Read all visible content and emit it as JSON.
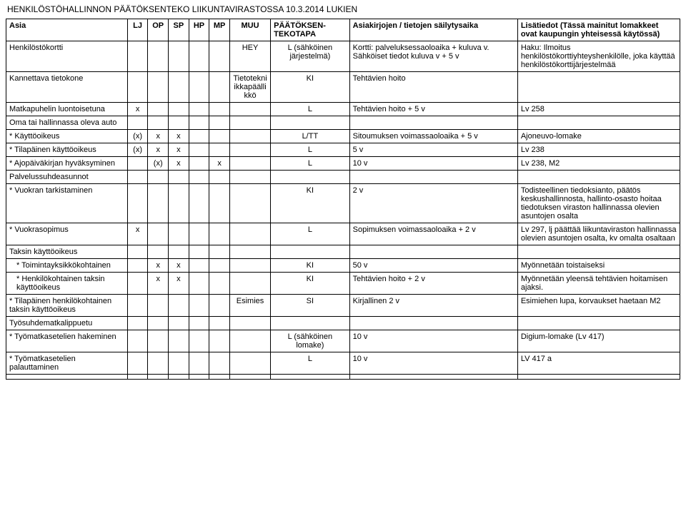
{
  "title": "HENKILÖSTÖHALLINNON PÄÄTÖKSENTEKO LIIKUNTAVIRASTOSSA 10.3.2014 LUKIEN",
  "headers": {
    "asia": "Asia",
    "lj": "LJ",
    "op": "OP",
    "sp": "SP",
    "hp": "HP",
    "mp": "MP",
    "muu": "MUU",
    "paatostapa": "PÄÄTÖKSEN-TEKOTAPA",
    "asiakirja": "Asiakirjojen / tietojen säilytysaika",
    "lisatiedot": "Lisätiedot (Tässä mainitut lomakkeet ovat kaupungin yhteisessä käytössä)"
  },
  "rows": [
    {
      "asia": "Henkilöstökortti",
      "muu": "HEY",
      "paatostapa": "L (sähköinen järjestelmä)",
      "asiakcol": "Kortti: palveluksessaoloaika + kuluva v. Sähköiset tiedot kuluva v + 5 v",
      "lisa": "Haku: Ilmoitus henkilöstökorttiyhteyshenkilölle, joka käyttää henkilöstökorttijärjestelmää"
    },
    {
      "asia": "Kannettava tietokone",
      "muu": "Tietotekniikkapäällikkö",
      "paatostapa": "KI",
      "asiakcol": "Tehtävien hoito"
    },
    {
      "asia": "Matkapuhelin luontoisetuna",
      "lj": "x",
      "paatostapa": "L",
      "asiakcol": "Tehtävien hoito + 5 v",
      "lisa": "Lv 258"
    },
    {
      "asia": "Oma tai hallinnassa oleva auto"
    },
    {
      "asia": "* Käyttöoikeus",
      "lj": "(x)",
      "op": "x",
      "sp": "x",
      "paatostapa": "L/TT",
      "asiakcol": "Sitoumuksen voimassaoloaika + 5 v",
      "lisa": "Ajoneuvo-lomake"
    },
    {
      "asia": "* Tilapäinen käyttöoikeus",
      "lj": "(x)",
      "op": "x",
      "sp": "x",
      "paatostapa": "L",
      "asiakcol": "5 v",
      "lisa": "Lv 238"
    },
    {
      "asia": "* Ajopäiväkirjan hyväksyminen",
      "op": "(x)",
      "sp": "x",
      "mp": "x",
      "paatostapa": "L",
      "asiakcol": "10 v",
      "lisa": "Lv 238, M2"
    },
    {
      "asia": "Palvelussuhdeasunnot"
    },
    {
      "asia": "* Vuokran tarkistaminen",
      "paatostapa": "KI",
      "asiakcol": "2 v",
      "lisa": "Todisteellinen tiedoksianto, päätös keskushallinnosta, hallinto-osasto hoitaa tiedotuksen viraston hallinnassa olevien asuntojen osalta"
    },
    {
      "asia": "* Vuokrasopimus",
      "lj": "x",
      "paatostapa": "L",
      "asiakcol": "Sopimuksen voimassaoloaika + 2 v",
      "lisa": "Lv 297, lj päättää liikuntaviraston hallinnassa olevien asuntojen osalta, kv omalta osaltaan"
    },
    {
      "asia": "Taksin käyttöoikeus"
    },
    {
      "asia": " * Toimintayksikkökohtainen",
      "indent": true,
      "op": "x",
      "sp": "x",
      "paatostapa": "KI",
      "asiakcol": "50 v",
      "lisa": "Myönnetään toistaiseksi"
    },
    {
      "asia": " * Henkilökohtainen taksin käyttöoikeus",
      "indent": true,
      "op": "x",
      "sp": "x",
      "paatostapa": "KI",
      "asiakcol": "Tehtävien hoito + 2 v",
      "lisa": "Myönnetään yleensä tehtävien hoitamisen ajaksi."
    },
    {
      "asia": "* Tilapäinen henkilökohtainen taksin käyttöoikeus",
      "muu": "Esimies",
      "paatostapa": "SI",
      "asiakcol": "Kirjallinen 2 v",
      "lisa": "Esimiehen lupa, korvaukset haetaan M2"
    },
    {
      "asia": "Työsuhdematkalippuetu"
    },
    {
      "asia": "* Työmatkasetelien hakeminen",
      "paatostapa": "L (sähköinen lomake)",
      "asiakcol": "10 v",
      "lisa": "Digium-lomake (Lv 417)"
    },
    {
      "asia": "* Työmatkasetelien palauttaminen",
      "paatostapa": "L",
      "asiakcol": "10 v",
      "lisa": "LV 417 a"
    },
    {
      "asia": ""
    }
  ]
}
